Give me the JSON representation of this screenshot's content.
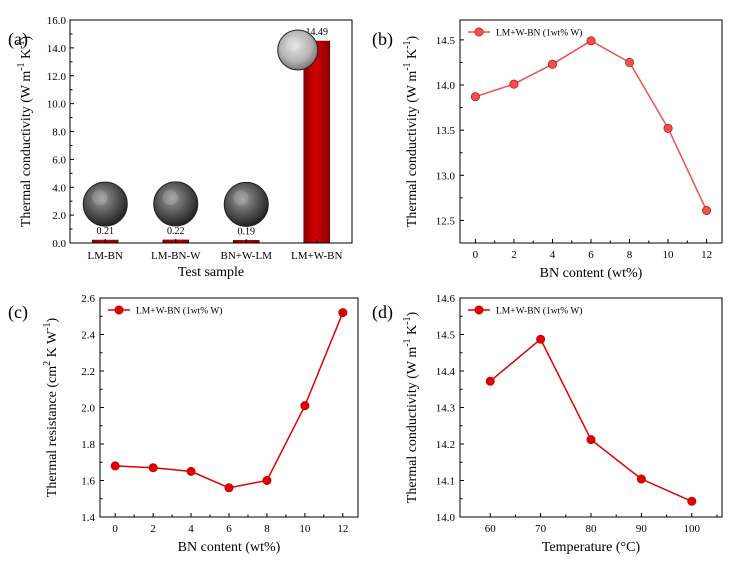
{
  "chart_data": [
    {
      "panel": "(a)",
      "type": "bar",
      "xlabel": "Test sample",
      "ylabel": "Thermal conductivity (W m",
      "ylabel_sup": "-1",
      "ylabel_mid": " K",
      "ylabel_sup2": "-1",
      "ylabel_end": ")",
      "categories": [
        "LM-BN",
        "LM-BN-W",
        "BN+W-LM",
        "LM+W-BN"
      ],
      "values": [
        0.21,
        0.22,
        0.19,
        14.49
      ],
      "value_labels": [
        "0.21",
        "0.22",
        "0.19",
        "14.49"
      ],
      "ylim": [
        0,
        16
      ],
      "yticks": [
        0,
        2,
        4,
        6,
        8,
        10,
        12,
        14,
        16
      ],
      "ytick_labels": [
        "0.0",
        "2.0",
        "4.0",
        "6.0",
        "8.0",
        "10.0",
        "12.0",
        "14.0",
        "16.0"
      ],
      "bar_color": "#c00000",
      "bar_edge": "#7a0000"
    },
    {
      "panel": "(b)",
      "type": "line",
      "xlabel": "BN content (wt%)",
      "ylabel": "Thermal conductivity (W m",
      "ylabel_sup": "-1",
      "ylabel_mid": " K",
      "ylabel_sup2": "-1",
      "ylabel_end": ")",
      "legend": "LM+W-BN (1wt% W)",
      "x": [
        0,
        2,
        4,
        6,
        8,
        10,
        12
      ],
      "y": [
        13.87,
        14.01,
        14.23,
        14.49,
        14.25,
        13.52,
        12.61
      ],
      "xlim": [
        -0.8,
        12.8
      ],
      "ylim": [
        12.25,
        14.72
      ],
      "xticks": [
        0,
        2,
        4,
        6,
        8,
        10,
        12
      ],
      "yticks": [
        12.5,
        13.0,
        13.5,
        14.0,
        14.5
      ],
      "ytick_labels": [
        "12.5",
        "13.0",
        "13.5",
        "14.0",
        "14.5"
      ],
      "color": "#f05050"
    },
    {
      "panel": "(c)",
      "type": "line",
      "xlabel": "BN content (wt%)",
      "ylabel": "Thermal resistance (cm",
      "ylabel_sup": "2",
      "ylabel_mid": " K W",
      "ylabel_sup2": "-1",
      "ylabel_end": ")",
      "legend": "LM+W-BN (1wt% W)",
      "x": [
        0,
        2,
        4,
        6,
        8,
        10,
        12
      ],
      "y": [
        1.68,
        1.67,
        1.65,
        1.56,
        1.6,
        2.01,
        2.52
      ],
      "xlim": [
        -0.8,
        12.8
      ],
      "ylim": [
        1.4,
        2.6
      ],
      "xticks": [
        0,
        2,
        4,
        6,
        8,
        10,
        12
      ],
      "yticks": [
        1.4,
        1.6,
        1.8,
        2.0,
        2.2,
        2.4,
        2.6
      ],
      "ytick_labels": [
        "1.4",
        "1.6",
        "1.8",
        "2.0",
        "2.2",
        "2.4",
        "2.6"
      ],
      "color": "#e00000"
    },
    {
      "panel": "(d)",
      "type": "line",
      "xlabel": "Temperature (°C)",
      "ylabel": "Thermal conductivity (W m",
      "ylabel_sup": "-1",
      "ylabel_mid": " K",
      "ylabel_sup2": "-1",
      "ylabel_end": ")",
      "legend": "LM+W-BN (1wt% W)",
      "x": [
        60,
        70,
        80,
        90,
        100
      ],
      "y": [
        14.372,
        14.487,
        14.212,
        14.104,
        14.043
      ],
      "xlim": [
        54,
        106
      ],
      "ylim": [
        14.0,
        14.6
      ],
      "xticks": [
        60,
        70,
        80,
        90,
        100
      ],
      "yticks": [
        14.0,
        14.1,
        14.2,
        14.3,
        14.4,
        14.5,
        14.6
      ],
      "ytick_labels": [
        "14.0",
        "14.1",
        "14.2",
        "14.3",
        "14.4",
        "14.5",
        "14.6"
      ],
      "color": "#e00000"
    }
  ]
}
